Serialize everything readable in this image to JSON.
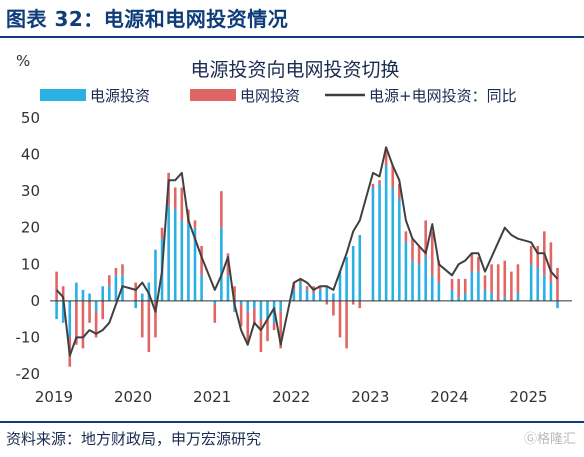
{
  "figure": {
    "title": "图表 32：电源和电网投资情况",
    "source": "资料来源：地方财政局，申万宏源研究",
    "watermark": "Ⓖ格隆汇"
  },
  "chart_data": {
    "type": "bar",
    "title": "电源投资向电网投资切换",
    "ylabel": "%",
    "ylim": [
      -20,
      50
    ],
    "yticks": [
      -20,
      -10,
      0,
      10,
      20,
      30,
      40,
      50
    ],
    "xticks": [
      "2019",
      "2020",
      "2021",
      "2022",
      "2023",
      "2024",
      "2025"
    ],
    "grid": false,
    "legend_position": "top",
    "colors": {
      "power_source": "#2bb0e4",
      "grid": "#e06666",
      "total_line": "#404040"
    },
    "x": [
      "2019-02",
      "2019-03",
      "2019-04",
      "2019-05",
      "2019-06",
      "2019-07",
      "2019-08",
      "2019-09",
      "2019-10",
      "2019-11",
      "2019-12",
      "2020-02",
      "2020-03",
      "2020-04",
      "2020-05",
      "2020-06",
      "2020-07",
      "2020-08",
      "2020-09",
      "2020-10",
      "2020-11",
      "2020-12",
      "2021-02",
      "2021-03",
      "2021-04",
      "2021-05",
      "2021-06",
      "2021-07",
      "2021-08",
      "2021-09",
      "2021-10",
      "2021-11",
      "2021-12",
      "2022-02",
      "2022-03",
      "2022-04",
      "2022-05",
      "2022-06",
      "2022-07",
      "2022-08",
      "2022-09",
      "2022-10",
      "2022-11",
      "2022-12",
      "2023-02",
      "2023-03",
      "2023-04",
      "2023-05",
      "2023-06",
      "2023-07",
      "2023-08",
      "2023-09",
      "2023-10",
      "2023-11",
      "2023-12",
      "2024-02",
      "2024-03",
      "2024-04",
      "2024-05",
      "2024-06",
      "2024-07",
      "2024-08",
      "2024-09",
      "2024-10",
      "2024-11",
      "2024-12",
      "2025-02",
      "2025-03",
      "2025-04",
      "2025-05",
      "2025-06"
    ],
    "series": [
      {
        "name": "电源投资",
        "kind": "bar",
        "values": [
          -5,
          -6,
          -10,
          5,
          3,
          2,
          -3,
          4,
          4,
          7,
          7,
          -2,
          2,
          5,
          14,
          17,
          26,
          25,
          22,
          21,
          20,
          7,
          -1,
          20,
          7,
          -3,
          -1,
          -3,
          -2,
          -5,
          -5,
          -6,
          -3,
          3,
          5,
          3,
          2,
          3,
          4,
          2,
          8,
          12,
          15,
          18,
          31,
          32,
          37,
          31,
          28,
          16,
          11,
          10,
          12,
          7,
          5,
          3,
          1,
          2,
          8,
          8,
          3,
          2,
          0,
          1,
          0,
          2,
          10,
          9,
          7,
          5,
          -2
        ]
      },
      {
        "name": "电网投资",
        "kind": "bar",
        "values": [
          8,
          4,
          -8,
          -12,
          -13,
          -6,
          -7,
          -5,
          3,
          2,
          3,
          5,
          -10,
          -14,
          -10,
          3,
          9,
          6,
          9,
          4,
          2,
          8,
          -5,
          10,
          6,
          4,
          -6,
          -9,
          -4,
          -9,
          -6,
          -2,
          -10,
          2,
          1,
          1,
          2,
          1,
          -1,
          -4,
          -10,
          -13,
          -1,
          -2,
          1,
          1,
          5,
          6,
          4,
          3,
          6,
          5,
          10,
          12,
          6,
          3,
          5,
          4,
          5,
          4,
          4,
          8,
          10,
          10,
          8,
          8,
          5,
          6,
          12,
          11,
          9
        ]
      },
      {
        "name": "电源+电网投资：同比",
        "kind": "line",
        "values": [
          3,
          1,
          -15,
          -10,
          -10,
          -8,
          -9,
          -8,
          -6,
          -1,
          4,
          3,
          5,
          2,
          -3,
          8,
          33,
          33,
          35,
          22,
          17,
          12,
          3,
          7,
          12,
          -1,
          -8,
          -12,
          -6,
          -8,
          -5,
          -2,
          -12,
          5,
          6,
          5,
          3,
          4,
          4,
          3,
          8,
          13,
          19,
          22,
          35,
          34,
          42,
          37,
          33,
          22,
          17,
          15,
          13,
          21,
          10,
          7,
          10,
          11,
          13,
          13,
          8,
          12,
          16,
          20,
          18,
          17,
          16,
          13,
          13,
          8,
          6
        ]
      }
    ]
  }
}
